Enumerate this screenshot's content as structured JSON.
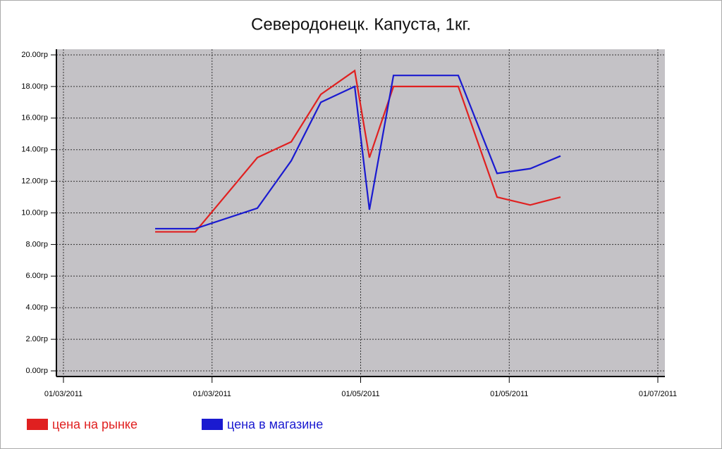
{
  "chart_data": {
    "type": "line",
    "title": "Северодонецк. Капуста, 1кг.",
    "x": [
      0.617,
      0.887,
      1.305,
      1.533,
      1.732,
      1.96,
      2.059,
      2.221,
      2.486,
      2.657,
      2.918,
      3.141,
      3.345
    ],
    "series": [
      {
        "name": "цена на рынке",
        "color": "#e02020",
        "values": [
          8.8,
          8.8,
          13.5,
          14.5,
          17.5,
          19.0,
          13.5,
          18.0,
          18.0,
          18.0,
          11.0,
          10.5,
          11.0
        ]
      },
      {
        "name": "цена в магазине",
        "color": "#1a1ad0",
        "values": [
          9.0,
          9.0,
          10.3,
          13.3,
          17.0,
          18.0,
          10.2,
          18.7,
          18.7,
          18.7,
          12.5,
          12.8,
          13.6
        ]
      }
    ],
    "xlim": [
      0,
      4
    ],
    "xticks": [
      {
        "value": 0,
        "label": "01/03/2011"
      },
      {
        "value": 1,
        "label": "01/03/2011"
      },
      {
        "value": 2,
        "label": "01/05/2011"
      },
      {
        "value": 3,
        "label": "01/05/2011"
      },
      {
        "value": 4,
        "label": "01/07/2011"
      }
    ],
    "ylim": [
      0,
      20
    ],
    "yticks": [
      {
        "value": 0,
        "label": "0.00гр"
      },
      {
        "value": 2,
        "label": "2.00гр"
      },
      {
        "value": 4,
        "label": "4.00гр"
      },
      {
        "value": 6,
        "label": "6.00гр"
      },
      {
        "value": 8,
        "label": "8.00гр"
      },
      {
        "value": 10,
        "label": "10.00гр"
      },
      {
        "value": 12,
        "label": "12.00гр"
      },
      {
        "value": 14,
        "label": "14.00гр"
      },
      {
        "value": 16,
        "label": "16.00гр"
      },
      {
        "value": 18,
        "label": "18.00гр"
      },
      {
        "value": 20,
        "label": "20.00гр"
      }
    ],
    "grid": true
  }
}
